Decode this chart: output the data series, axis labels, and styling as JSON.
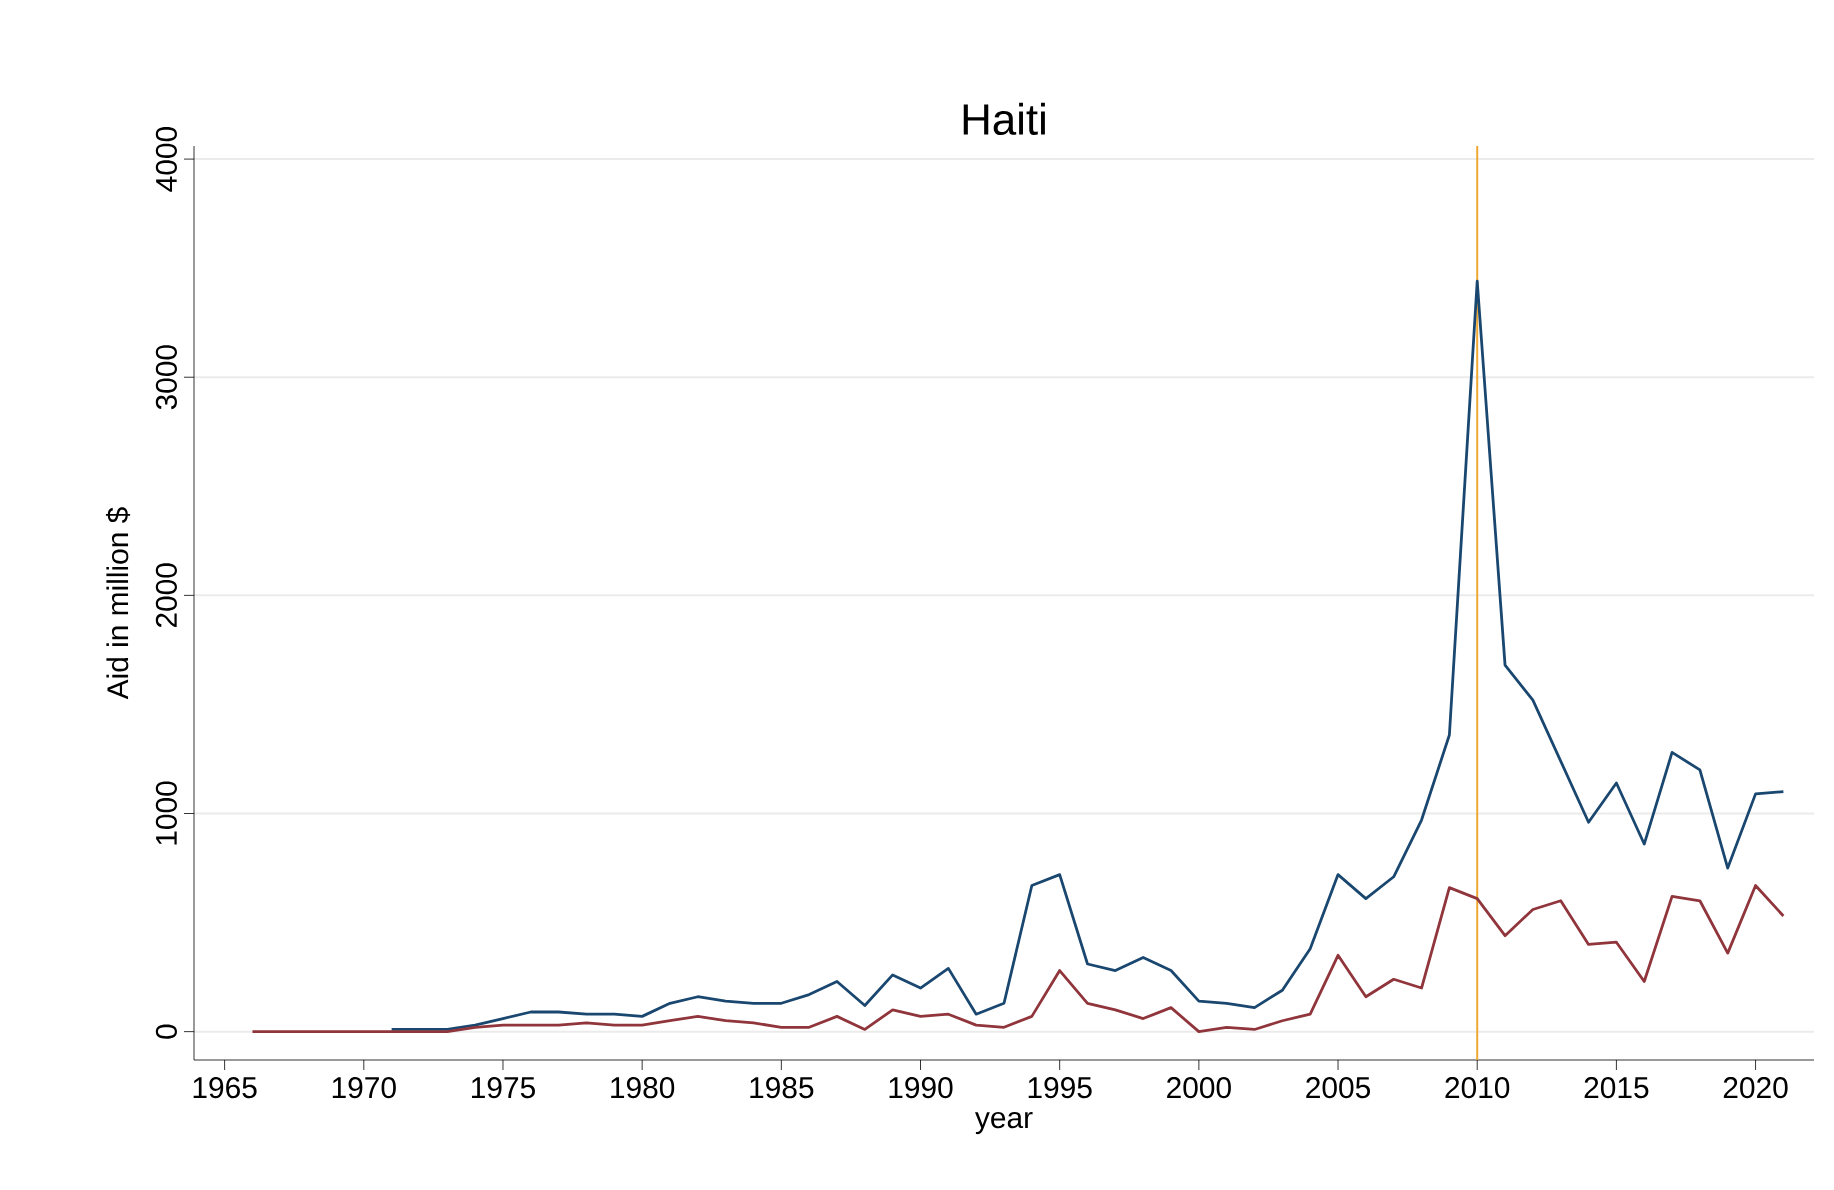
{
  "chart_data": {
    "type": "line",
    "title": "Haiti",
    "xlabel": "year",
    "ylabel": "Aid in million $",
    "x": [
      1966,
      1967,
      1968,
      1969,
      1970,
      1971,
      1972,
      1973,
      1974,
      1975,
      1976,
      1977,
      1978,
      1979,
      1980,
      1981,
      1982,
      1983,
      1984,
      1985,
      1986,
      1987,
      1988,
      1989,
      1990,
      1991,
      1992,
      1993,
      1994,
      1995,
      1996,
      1997,
      1998,
      1999,
      2000,
      2001,
      2002,
      2003,
      2004,
      2005,
      2006,
      2007,
      2008,
      2009,
      2010,
      2011,
      2012,
      2013,
      2014,
      2015,
      2016,
      2017,
      2018,
      2019,
      2020,
      2021
    ],
    "series": [
      {
        "color": "#1a476f",
        "values": [
          null,
          null,
          null,
          null,
          null,
          10,
          10,
          10,
          30,
          60,
          90,
          90,
          80,
          80,
          70,
          130,
          160,
          140,
          130,
          130,
          170,
          230,
          120,
          260,
          200,
          290,
          80,
          130,
          670,
          720,
          310,
          280,
          340,
          280,
          140,
          130,
          110,
          190,
          380,
          720,
          610,
          710,
          970,
          1360,
          3440,
          1680,
          1520,
          1240,
          960,
          1140,
          860,
          1280,
          1200,
          750,
          1090,
          1100
        ]
      },
      {
        "color": "#90353b",
        "values": [
          0,
          0,
          0,
          0,
          0,
          0,
          0,
          0,
          20,
          30,
          30,
          30,
          40,
          30,
          30,
          50,
          70,
          50,
          40,
          20,
          20,
          70,
          10,
          100,
          70,
          80,
          30,
          20,
          70,
          280,
          130,
          100,
          60,
          110,
          0,
          20,
          10,
          50,
          80,
          350,
          160,
          240,
          200,
          660,
          610,
          440,
          560,
          600,
          400,
          410,
          230,
          620,
          600,
          360,
          670,
          530
        ]
      }
    ],
    "xlim": [
      1963.9,
      2022.1
    ],
    "ylim": [
      -130,
      4060
    ],
    "xticks": [
      1965,
      1970,
      1975,
      1980,
      1985,
      1990,
      1995,
      2000,
      2005,
      2010,
      2015,
      2020
    ],
    "yticks": [
      0,
      1000,
      2000,
      3000,
      4000
    ],
    "grid": "y",
    "marker": "none",
    "line_style": "solid",
    "ref_lines": [
      {
        "axis": "x",
        "value": 2010,
        "color": "#f0a830"
      }
    ]
  }
}
